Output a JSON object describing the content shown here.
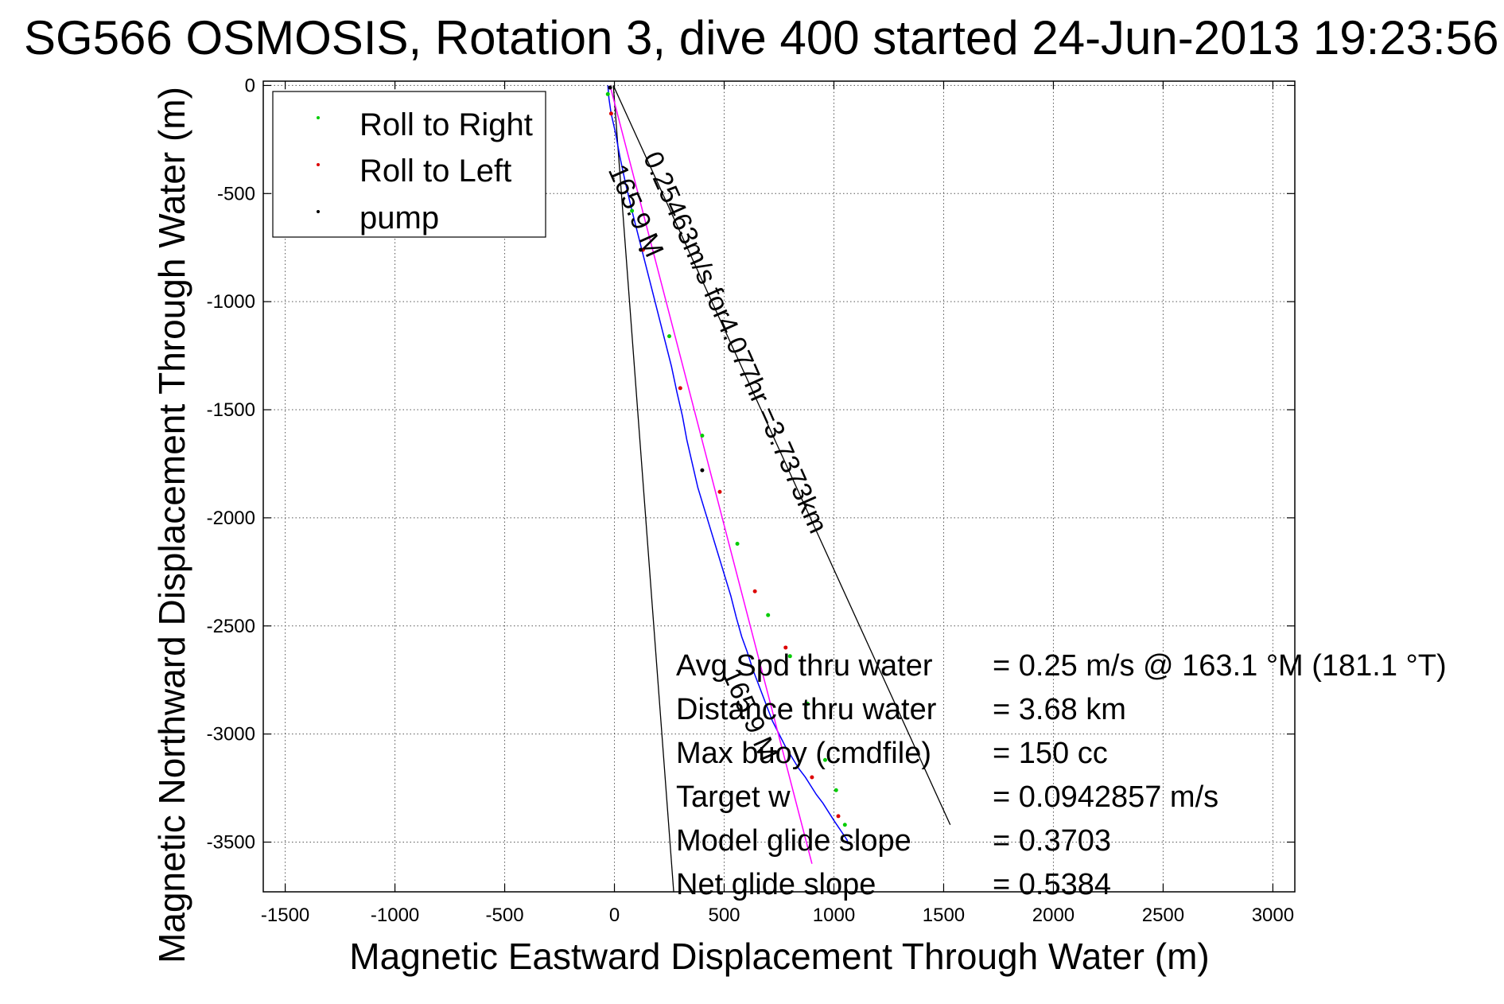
{
  "chart_data": {
    "type": "line",
    "title": "SG566 OSMOSIS, Rotation 3, dive 400 started 24-Jun-2013 19:23:56",
    "xlabel": "Magnetic Eastward Displacement Through Water (m)",
    "ylabel": "Magnetic Northward Displacement Through Water (m)",
    "xlim": [
      -1600,
      3100
    ],
    "ylim": [
      -3730,
      20
    ],
    "xticks": [
      -1500,
      -1000,
      -500,
      0,
      500,
      1000,
      1500,
      2000,
      2500,
      3000
    ],
    "xtick_labels": [
      "-1500",
      "-1000",
      "-500",
      "0",
      "500",
      "1000",
      "1500",
      "2000",
      "2500",
      "3000"
    ],
    "yticks": [
      0,
      -500,
      -1000,
      -1500,
      -2000,
      -2500,
      -3000,
      -3500
    ],
    "ytick_labels": [
      "0",
      "-500",
      "-1000",
      "-1500",
      "-2000",
      "-2500",
      "-3000",
      "-3500"
    ],
    "grid": true,
    "legend_position": "top-left",
    "legend": [
      {
        "label": "Roll to Right",
        "color": "#00cc00"
      },
      {
        "label": "Roll to Left",
        "color": "#dd0000"
      },
      {
        "label": "pump",
        "color": "#000000"
      }
    ],
    "series": [
      {
        "name": "track",
        "color": "#0000ff",
        "x": [
          -30,
          -25,
          -15,
          5,
          25,
          50,
          80,
          110,
          140,
          170,
          200,
          230,
          260,
          285,
          310,
          330,
          355,
          380,
          410,
          440,
          470,
          500,
          530,
          555,
          580,
          605,
          630,
          660,
          690,
          720,
          750,
          780,
          810,
          840,
          870,
          895,
          920,
          950,
          975,
          1000,
          1020,
          1040,
          1060,
          1065
        ],
        "y": [
          0,
          -60,
          -130,
          -220,
          -330,
          -450,
          -580,
          -700,
          -820,
          -940,
          -1060,
          -1180,
          -1300,
          -1420,
          -1530,
          -1640,
          -1750,
          -1860,
          -1960,
          -2060,
          -2160,
          -2260,
          -2360,
          -2460,
          -2550,
          -2620,
          -2700,
          -2780,
          -2860,
          -2940,
          -3000,
          -3060,
          -3110,
          -3160,
          -3200,
          -3240,
          -3280,
          -3320,
          -3360,
          -3400,
          -3430,
          -3460,
          -3490,
          -3510
        ]
      },
      {
        "name": "",
        "color": "#ff00ff",
        "x": [
          -20,
          900
        ],
        "y": [
          0,
          -3600
        ]
      }
    ],
    "markers": {
      "roll_to_right": {
        "color": "#00cc00",
        "x": [
          -30,
          80,
          250,
          400,
          560,
          700,
          800,
          880,
          960,
          1010,
          1050
        ],
        "y": [
          -40,
          -580,
          -1160,
          -1620,
          -2120,
          -2450,
          -2640,
          -2860,
          -3120,
          -3260,
          -3420
        ]
      },
      "roll_to_left": {
        "color": "#dd0000",
        "x": [
          -15,
          130,
          300,
          480,
          640,
          780,
          900,
          1020
        ],
        "y": [
          -130,
          -760,
          -1400,
          -1880,
          -2340,
          -2600,
          -3200,
          -3380
        ]
      },
      "pump": {
        "color": "#000000",
        "x": [
          -20,
          120,
          400
        ],
        "y": [
          -10,
          -760,
          -1780
        ]
      }
    },
    "lines": [
      {
        "color": "#000000",
        "x": [
          -5,
          1530
        ],
        "y": [
          0,
          -3420
        ]
      },
      {
        "color": "#000000",
        "x": [
          -5,
          270
        ],
        "y": [
          0,
          -3730
        ]
      }
    ],
    "annotations": [
      {
        "text": "0.25463m/s for4.077hr =3.7373km",
        "x": 130,
        "y": -330,
        "rotate": 66
      },
      {
        "text": "165.9 M",
        "x": -30,
        "y": -390,
        "rotate": 66
      },
      {
        "text": "165.9 M",
        "x": 490,
        "y": -2720,
        "rotate": 66
      }
    ],
    "stats": [
      {
        "label": "Avg Spd thru water",
        "value": "=  0.25 m/s @ 163.1 °M (181.1 °T)"
      },
      {
        "label": "Distance thru water",
        "value": "=  3.68 km"
      },
      {
        "label": "Max buoy (cmdfile)",
        "value": "= 150 cc"
      },
      {
        "label": "Target w",
        "value": "= 0.0942857 m/s"
      },
      {
        "label": "Model glide slope",
        "value": "= 0.3703"
      },
      {
        "label": "Net glide slope",
        "value": "= 0.5384"
      }
    ]
  }
}
